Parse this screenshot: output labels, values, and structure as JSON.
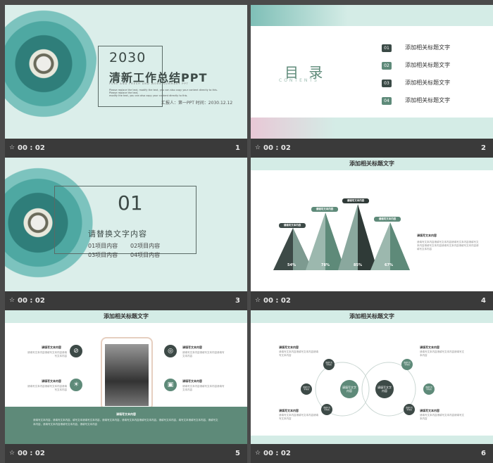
{
  "colors": {
    "accent": "#5e8a79",
    "mint": "#dbeeea",
    "dark": "#3a4a46"
  },
  "slides": [
    {
      "num": "1",
      "time": "00 : 02",
      "year": "2030",
      "title": "清新工作总结PPT",
      "subtitle": "PURE AND FRESH AND WORK SUMMARY PPT",
      "desc1": "Please replace the text, modify the text, you can also copy your content directly to this. Please replace the text,",
      "desc2": "modify the text, you can also copy your content directly to this.",
      "reporter": "汇报人：第一PPT  时间：2030.12.12"
    },
    {
      "num": "2",
      "time": "00 : 02",
      "toc_title": "目 录",
      "toc_sub": "CONTENTS",
      "items": [
        {
          "n": "01",
          "t": "添加相关标题文字"
        },
        {
          "n": "02",
          "t": "添加相关标题文字"
        },
        {
          "n": "03",
          "t": "添加相关标题文字"
        },
        {
          "n": "04",
          "t": "添加相关标题文字"
        }
      ]
    },
    {
      "num": "3",
      "time": "00 : 02",
      "big": "01",
      "heading": "请替换文字内容",
      "items": [
        "01项目内容",
        "02项目内容",
        "03项目内容",
        "04项目内容"
      ]
    },
    {
      "num": "4",
      "time": "00 : 02",
      "title": "添加相关标题文字",
      "labels": [
        "请填写文本内容",
        "请填写文本内容",
        "请填写文本内容",
        "请填写文本内容"
      ],
      "percents": [
        "54%",
        "78%",
        "85%",
        "67%"
      ],
      "side_title": "请填写文本内容",
      "side_text": "请填写文本内容请填写文本内容请填写文本内容请填写文本内容请填写文本内容请填写文本内容请填写文本内容请填写文本内容"
    },
    {
      "num": "5",
      "time": "00 : 02",
      "title": "添加相关标题文字",
      "features": [
        {
          "t": "请填写文本内容",
          "d": "请填写文本内容请填写文本内容请填写文本内容"
        },
        {
          "t": "请填写文本内容",
          "d": "请填写文本内容请填写文本内容请填写文本内容"
        },
        {
          "t": "请填写文本内容",
          "d": "请填写文本内容请填写文本内容请填写文本内容"
        },
        {
          "t": "请填写文本内容",
          "d": "请填写文本内容请填写文本内容请填写文本内容"
        }
      ],
      "bottom_title": "请填写文本内容",
      "bottom_text": "请填写文本内容，请填写文本内容，填写文本请填写文本内容，请填写文本内容，请填写文本内容请填写文本内容，请填写文本内容，填写文本请填写文本内容，请填写文本内容，请填写文本内容请填写文本内容，请填写文本内容"
    },
    {
      "num": "6",
      "time": "00 : 02",
      "title": "添加相关标题文字",
      "center": [
        "请填写文字内容",
        "请填写文字内容"
      ],
      "nodes": [
        "请填写文字内容",
        "请填写文字内容",
        "请填写文字内容",
        "请填写文字内容",
        "请填写文字内容",
        "请填写文字内容"
      ],
      "texts": [
        {
          "t": "请填写文本内容",
          "d": "请填写文本内容请填写文本内容请填写文本内容"
        },
        {
          "t": "请填写文本内容",
          "d": "请填写文本内容请填写文本内容请填写文本内容"
        },
        {
          "t": "请填写文本内容",
          "d": "请填写文本内容请填写文本内容请填写文本内容"
        },
        {
          "t": "请填写文本内容",
          "d": "请填写文本内容请填写文本内容请填写文本内容"
        }
      ]
    }
  ]
}
